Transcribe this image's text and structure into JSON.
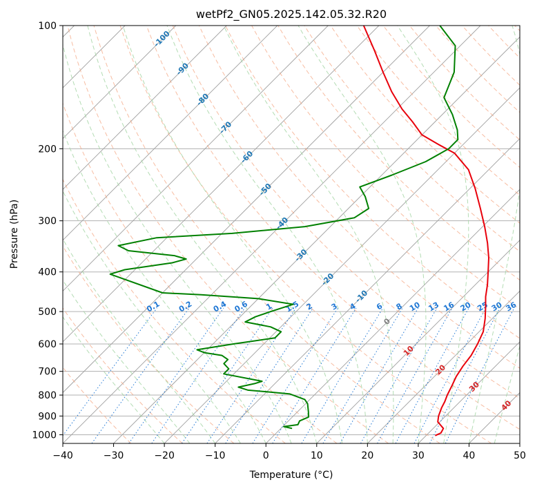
{
  "chart_data": {
    "type": "line",
    "title": "wetPf2_GN05.2025.142.05.32.R20",
    "xlabel": "Temperature (°C)",
    "ylabel": "Pressure (hPa)",
    "xlim": [
      -40,
      50
    ],
    "ylim": [
      1050,
      100
    ],
    "yscale": "log",
    "skew_degrees": 45,
    "grid": true,
    "x_ticks": [
      -40,
      -30,
      -20,
      -10,
      0,
      10,
      20,
      30,
      40,
      50
    ],
    "y_ticks": [
      100,
      200,
      300,
      400,
      500,
      600,
      700,
      800,
      900,
      1000
    ],
    "series": [
      {
        "color": "#e8000b",
        "points": [
          [
            1005,
            31.8
          ],
          [
            990,
            32.4
          ],
          [
            965,
            32.0
          ],
          [
            930,
            29.6
          ],
          [
            900,
            28.6
          ],
          [
            860,
            27.6
          ],
          [
            830,
            27.0
          ],
          [
            800,
            26.2
          ],
          [
            760,
            25.3
          ],
          [
            720,
            24.3
          ],
          [
            680,
            23.6
          ],
          [
            640,
            23.1
          ],
          [
            600,
            22.1
          ],
          [
            560,
            20.8
          ],
          [
            520,
            18.6
          ],
          [
            490,
            16.6
          ],
          [
            460,
            14.4
          ],
          [
            430,
            12.4
          ],
          [
            400,
            10.0
          ],
          [
            370,
            7.4
          ],
          [
            340,
            4.2
          ],
          [
            310,
            0.4
          ],
          [
            280,
            -4.0
          ],
          [
            250,
            -9.0
          ],
          [
            225,
            -14.0
          ],
          [
            205,
            -20.0
          ],
          [
            195,
            -25.0
          ],
          [
            185,
            -30.0
          ],
          [
            172,
            -34.4
          ],
          [
            160,
            -39.0
          ],
          [
            145,
            -44.5
          ],
          [
            130,
            -50.0
          ],
          [
            115,
            -56.0
          ],
          [
            100,
            -63.0
          ]
        ]
      },
      {
        "color": "#008000",
        "points": [
          [
            965,
            2.2
          ],
          [
            955,
            0.2
          ],
          [
            945,
            2.6
          ],
          [
            925,
            2.2
          ],
          [
            905,
            3.2
          ],
          [
            880,
            2.2
          ],
          [
            840,
            0.4
          ],
          [
            820,
            -1.0
          ],
          [
            795,
            -5.0
          ],
          [
            785,
            -10.0
          ],
          [
            778,
            -14.0
          ],
          [
            765,
            -16.5
          ],
          [
            750,
            -14.0
          ],
          [
            740,
            -13.0
          ],
          [
            710,
            -22.0
          ],
          [
            690,
            -22.0
          ],
          [
            670,
            -24.0
          ],
          [
            655,
            -24.0
          ],
          [
            640,
            -26.0
          ],
          [
            630,
            -30.0
          ],
          [
            620,
            -32.0
          ],
          [
            600,
            -26.0
          ],
          [
            580,
            -19.0
          ],
          [
            560,
            -19.0
          ],
          [
            545,
            -22.0
          ],
          [
            530,
            -28.0
          ],
          [
            515,
            -27.0
          ],
          [
            500,
            -25.0
          ],
          [
            480,
            -22.0
          ],
          [
            465,
            -30.0
          ],
          [
            455,
            -42.0
          ],
          [
            450,
            -50.0
          ],
          [
            405,
            -64.0
          ],
          [
            395,
            -62.0
          ],
          [
            380,
            -54.0
          ],
          [
            372,
            -52.0
          ],
          [
            365,
            -55.0
          ],
          [
            355,
            -65.0
          ],
          [
            345,
            -68.0
          ],
          [
            330,
            -62.0
          ],
          [
            322,
            -48.0
          ],
          [
            310,
            -35.0
          ],
          [
            295,
            -27.0
          ],
          [
            280,
            -26.0
          ],
          [
            262,
            -29.0
          ],
          [
            248,
            -32.0
          ],
          [
            232,
            -28.0
          ],
          [
            215,
            -24.0
          ],
          [
            200,
            -22.0
          ],
          [
            190,
            -22.0
          ],
          [
            180,
            -24.0
          ],
          [
            165,
            -28.0
          ],
          [
            150,
            -33.0
          ],
          [
            130,
            -36.0
          ],
          [
            112,
            -41.0
          ],
          [
            100,
            -48.0
          ]
        ]
      }
    ],
    "mixing_ratio_labels": [
      "0.1",
      "0.2",
      "0.4",
      "0.6",
      "1",
      "1.5",
      "2",
      "3",
      "4",
      "6",
      "8",
      "10",
      "13",
      "16",
      "20",
      "25",
      "30",
      "36"
    ],
    "dry_adiabat_labels": [
      "-100",
      "-90",
      "-80",
      "-70",
      "-60",
      "-50",
      "-40",
      "-30",
      "-20",
      "-10",
      "0",
      "10",
      "20",
      "30",
      "40"
    ],
    "colors": {
      "temperature": "#e8000b",
      "dewpoint": "#008000",
      "dry_adiabat": "#f4a582",
      "moist_adiabat": "#a6d6a6",
      "mixing_ratio": "#1f77d4",
      "isotherm": "#a0a0a0",
      "grid": "#b0b0b0",
      "adiabat_label_cold": "#1f77b4",
      "adiabat_label_warm": "#d62728",
      "adiabat_label_zero": "#7f7f7f"
    }
  }
}
